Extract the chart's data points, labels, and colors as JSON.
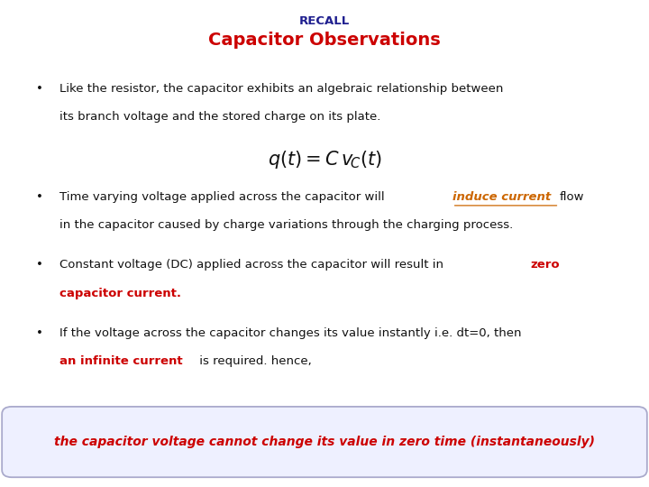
{
  "title_recall": "RECALL",
  "title_main": "Capacitor Observations",
  "title_recall_color": "#1f1f8f",
  "title_main_color": "#cc0000",
  "background_color": "#ffffff",
  "bullet1_line1": "Like the resistor, the capacitor exhibits an algebraic relationship between",
  "bullet1_line2": "its branch voltage and the stored charge on its plate.",
  "bullet2_pre": "Time varying voltage applied across the capacitor will ",
  "bullet2_italic": "induce current ",
  "bullet2_post": "flow",
  "bullet2_line2": "in the capacitor caused by charge variations through the charging process.",
  "bullet3_pre": "Constant voltage (DC) applied across the capacitor will result in ",
  "bullet3_red1": "zero",
  "bullet3_red2": "capacitor current.",
  "bullet4_line1": "If the voltage across the capacitor changes its value instantly i.e. dt=0, then",
  "bullet4_red": "an infinite current",
  "bullet4_post": " is required. hence,",
  "footer_text": "the capacitor voltage cannot change its value in zero time (instantaneously)",
  "footer_color": "#cc0000",
  "footer_bg": "#eef0ff",
  "footer_border": "#aaaacc",
  "text_color_black": "#111111",
  "text_color_red": "#cc0000",
  "text_color_orange": "#cc6600",
  "bullet_symbol": "•"
}
